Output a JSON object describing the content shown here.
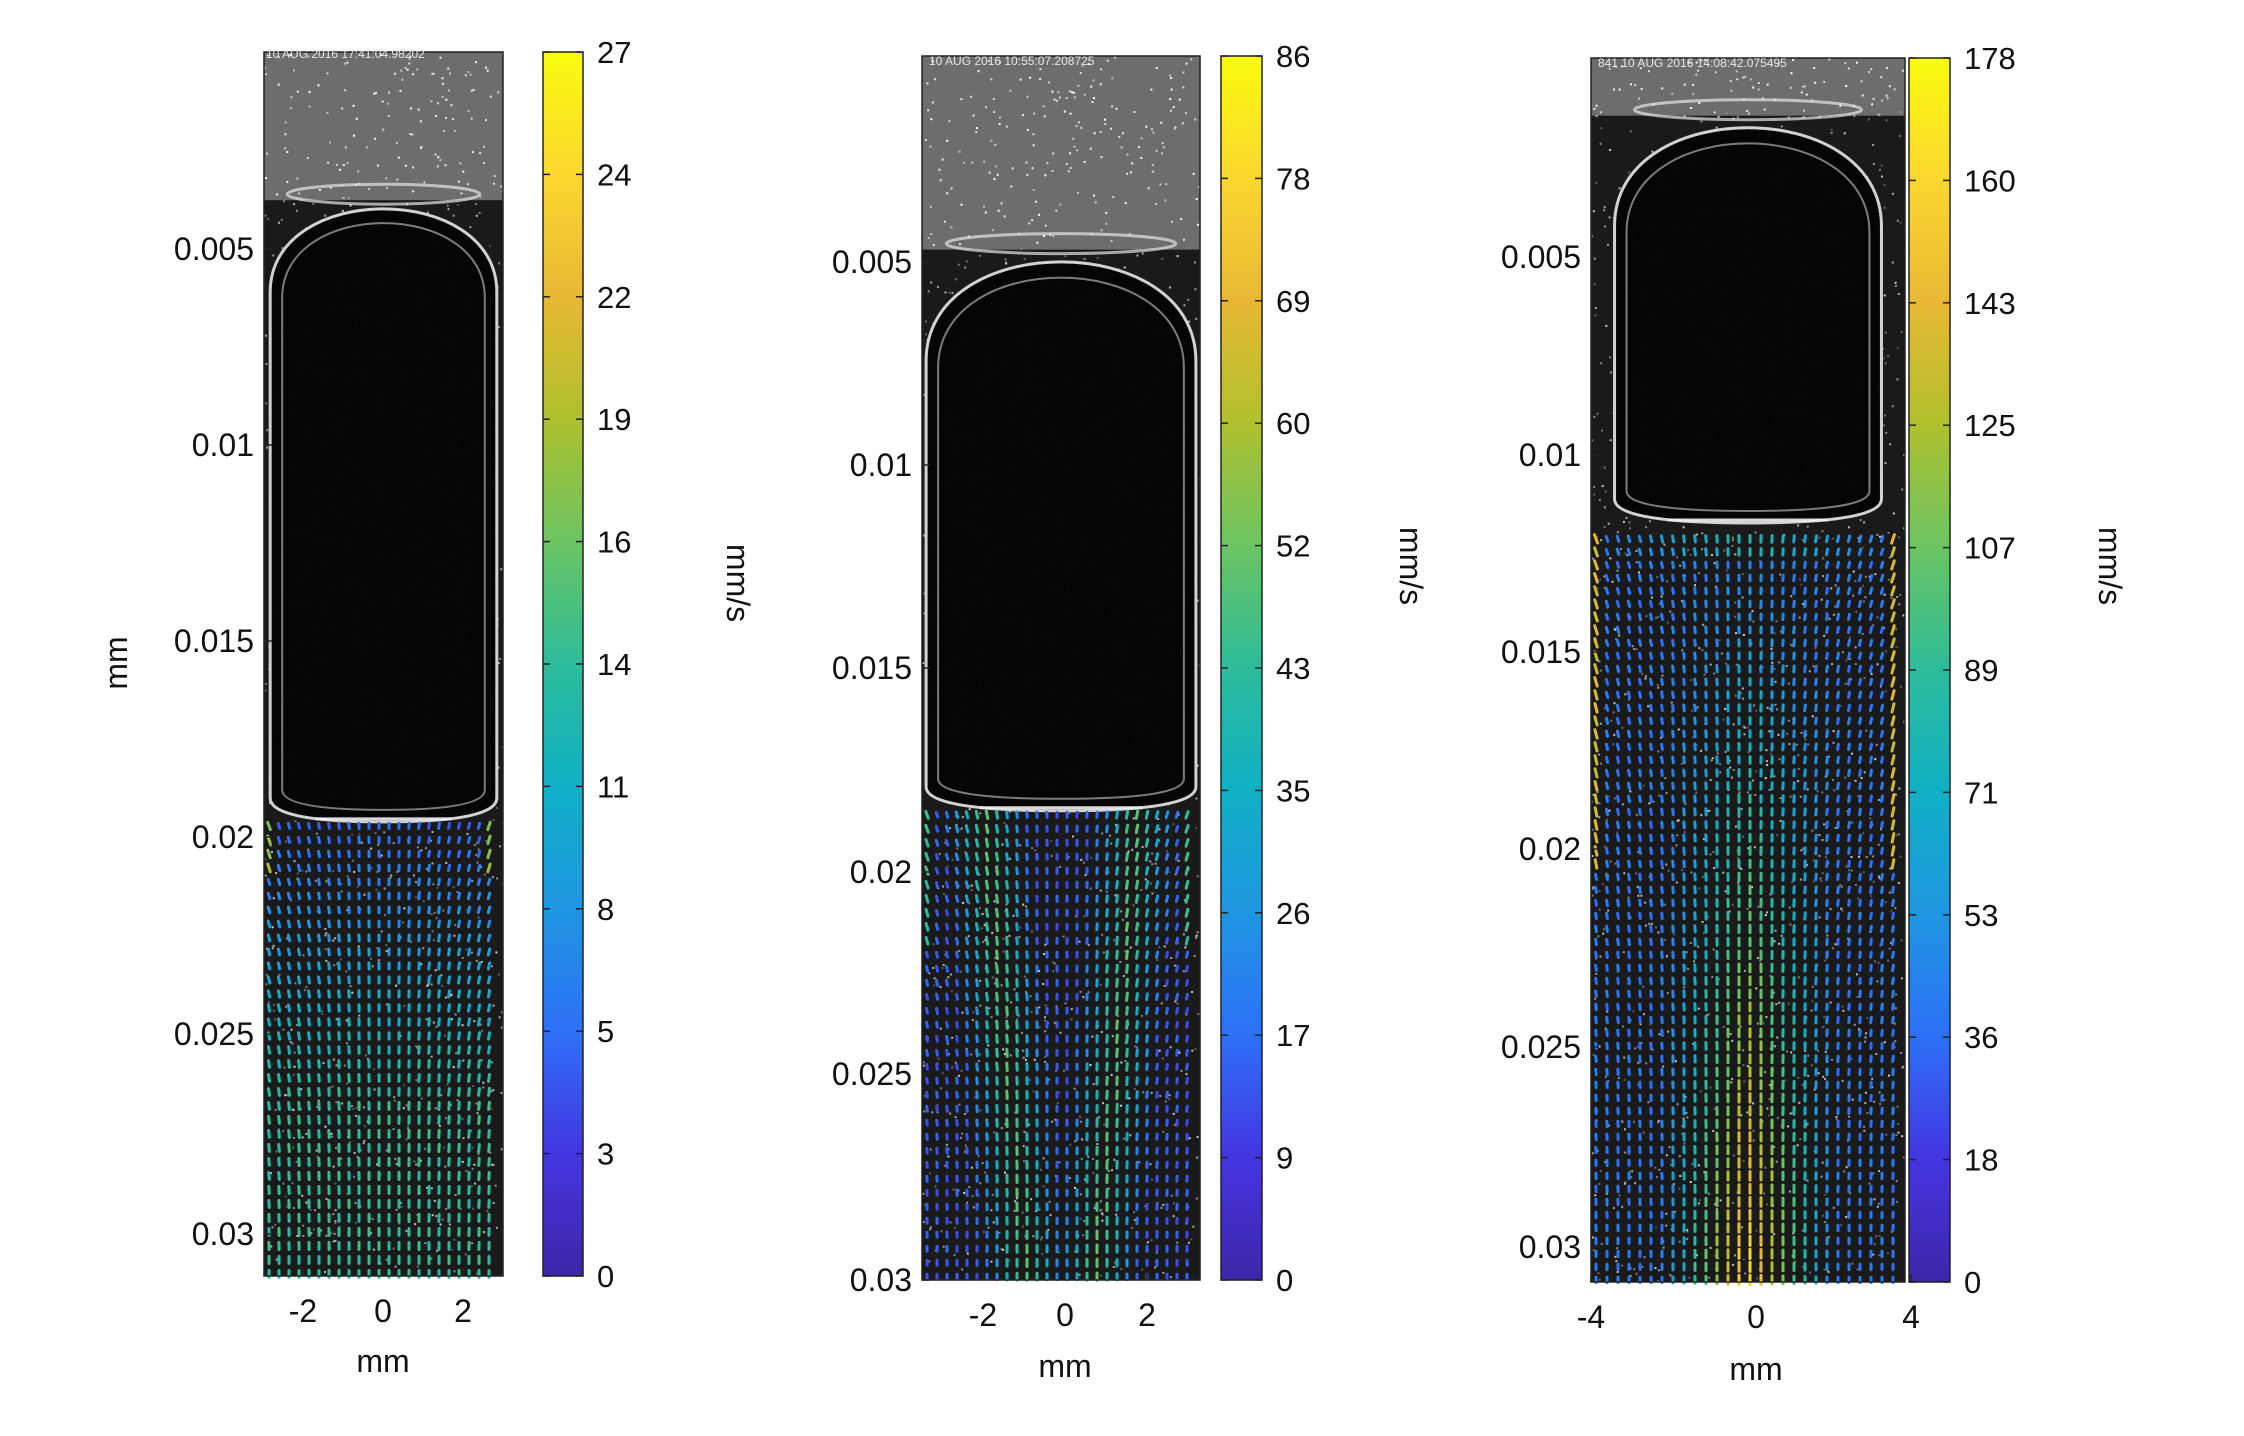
{
  "chart_data": [
    {
      "type": "heatmap",
      "title": "",
      "overlay": "velocity vector field (quiver) over a grayscale high-speed camera image of a Taylor bubble",
      "timestamp_text": "10 AUG 2016  17:41:04.98202",
      "xlabel": "mm",
      "ylabel": "mm",
      "xticks": [
        "-2",
        "0",
        "2"
      ],
      "xlim": [
        -2.9,
        2.9
      ],
      "yticks": [
        "0.005",
        "0.01",
        "0.015",
        "0.02",
        "0.025",
        "0.03"
      ],
      "ylim": [
        0,
        0.031
      ],
      "y_reversed": true,
      "colorbar": {
        "label": "mm/s",
        "min": 0,
        "max": 27,
        "ticks": [
          "0",
          "3",
          "5",
          "8",
          "11",
          "14",
          "16",
          "19",
          "22",
          "24",
          "27"
        ]
      },
      "bubble": {
        "nose_y": 0.0035,
        "tail_y": 0.0195,
        "half_width": 2.75
      },
      "vector_region_y": [
        0.0195,
        0.031
      ]
    },
    {
      "type": "heatmap",
      "title": "",
      "overlay": "velocity vector field (quiver) over a grayscale high-speed camera image of a Taylor bubble",
      "timestamp_text": "10 AUG 2016  10:55:07.208725",
      "xlabel": "mm",
      "ylabel": "",
      "xticks": [
        "-2",
        "0",
        "2"
      ],
      "xlim": [
        -3.4,
        3.4
      ],
      "yticks": [
        "0.005",
        "0.01",
        "0.015",
        "0.02",
        "0.025",
        "0.03"
      ],
      "ylim": [
        0,
        0.03
      ],
      "y_reversed": true,
      "colorbar": {
        "label": "mm/s",
        "min": 0,
        "max": 86,
        "ticks": [
          "0",
          "9",
          "17",
          "26",
          "35",
          "43",
          "52",
          "60",
          "69",
          "78",
          "86"
        ]
      },
      "bubble": {
        "nose_y": 0.0045,
        "tail_y": 0.0185,
        "half_width": 3.3
      },
      "vector_region_y": [
        0.0185,
        0.03
      ]
    },
    {
      "type": "heatmap",
      "title": "",
      "overlay": "velocity vector field (quiver) over a grayscale high-speed camera image of a Taylor bubble",
      "timestamp_text": "841  10 AUG 2016  14:08:42.075495",
      "xlabel": "mm",
      "ylabel": "",
      "xticks": [
        "-4",
        "0",
        "4"
      ],
      "xlim": [
        -4,
        4
      ],
      "yticks": [
        "0.005",
        "0.01",
        "0.015",
        "0.02",
        "0.025",
        "0.03"
      ],
      "ylim": [
        0,
        0.0308
      ],
      "y_reversed": true,
      "colorbar": {
        "label": "mm/s",
        "min": 0,
        "max": 178,
        "ticks": [
          "0",
          "18",
          "36",
          "53",
          "71",
          "89",
          "107",
          "125",
          "143",
          "160",
          "178"
        ]
      },
      "bubble": {
        "nose_y": 0.0012,
        "tail_y": 0.0117,
        "half_width": 3.4
      },
      "vector_region_y": [
        0.012,
        0.0308
      ]
    }
  ],
  "colormap": [
    "#3e26a8",
    "#4435e1",
    "#2d70f7",
    "#1f96e1",
    "#10b0c5",
    "#2dbc9a",
    "#6bc462",
    "#afc02e",
    "#e8b834",
    "#fbd72f",
    "#f9fb0e"
  ]
}
